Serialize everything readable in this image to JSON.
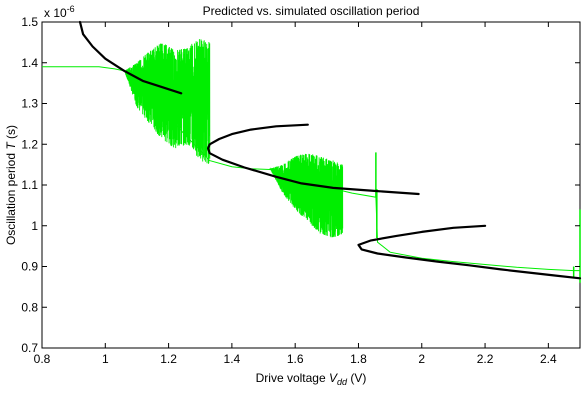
{
  "chart_data": {
    "type": "line",
    "title": "Predicted vs. simulated oscillation period",
    "xlabel": "Drive voltage V_dd (V)",
    "xlabel_parts": {
      "pre": "Drive voltage ",
      "var": "V",
      "sub": "dd",
      "post": " (V)"
    },
    "ylabel": "Oscillation period T (s)",
    "ylabel_parts": {
      "pre": "Oscillation period ",
      "var": "T",
      "post": " (s)"
    },
    "y_exponent_label": "x 10",
    "y_exponent_power": "-6",
    "xlim": [
      0.8,
      2.5
    ],
    "ylim": [
      0.7,
      1.5
    ],
    "xticks": [
      0.8,
      1,
      1.2,
      1.4,
      1.6,
      1.8,
      2,
      2.2,
      2.4
    ],
    "xtick_labels": [
      "0.8",
      "1",
      "1.2",
      "1.4",
      "1.6",
      "1.8",
      "2",
      "2.2",
      "2.4"
    ],
    "yticks": [
      0.7,
      0.8,
      0.9,
      1.0,
      1.1,
      1.2,
      1.3,
      1.4,
      1.5
    ],
    "ytick_labels": [
      "0.7",
      "0.8",
      "0.9",
      "1",
      "1.1",
      "1.2",
      "1.3",
      "1.4",
      "1.5"
    ],
    "grid": false,
    "colors": {
      "predicted": "#000000",
      "simulated": "#00ee00",
      "axes": "#000000"
    },
    "series": [
      {
        "kind": "predicted",
        "segments": [
          [
            [
              0.92,
              1.5
            ],
            [
              0.93,
              1.47
            ],
            [
              0.96,
              1.44
            ],
            [
              1.0,
              1.41
            ],
            [
              1.06,
              1.38
            ],
            [
              1.12,
              1.355
            ],
            [
              1.18,
              1.34
            ],
            [
              1.24,
              1.325
            ]
          ],
          [
            [
              1.64,
              1.248
            ],
            [
              1.54,
              1.244
            ],
            [
              1.46,
              1.236
            ],
            [
              1.4,
              1.225
            ],
            [
              1.36,
              1.213
            ],
            [
              1.33,
              1.2
            ],
            [
              1.325,
              1.19
            ],
            [
              1.33,
              1.178
            ],
            [
              1.37,
              1.162
            ],
            [
              1.44,
              1.143
            ],
            [
              1.54,
              1.12
            ],
            [
              1.62,
              1.104
            ],
            [
              1.72,
              1.093
            ],
            [
              1.86,
              1.085
            ],
            [
              1.99,
              1.078
            ]
          ],
          [
            [
              2.2,
              1.0
            ],
            [
              2.1,
              0.995
            ],
            [
              2.0,
              0.985
            ],
            [
              1.92,
              0.975
            ],
            [
              1.84,
              0.964
            ],
            [
              1.8,
              0.953
            ],
            [
              1.81,
              0.942
            ],
            [
              1.86,
              0.932
            ],
            [
              1.95,
              0.922
            ],
            [
              2.05,
              0.912
            ],
            [
              2.15,
              0.903
            ],
            [
              2.25,
              0.893
            ],
            [
              2.35,
              0.884
            ],
            [
              2.42,
              0.878
            ],
            [
              2.5,
              0.871
            ]
          ]
        ]
      },
      {
        "kind": "simulated",
        "baseline": [
          [
            0.8,
            1.39
          ],
          [
            0.92,
            1.39
          ],
          [
            0.98,
            1.39
          ],
          [
            1.03,
            1.385
          ],
          [
            1.06,
            1.38
          ],
          [
            1.33,
            1.16
          ],
          [
            1.4,
            1.145
          ],
          [
            1.46,
            1.14
          ],
          [
            1.52,
            1.138
          ],
          [
            1.56,
            1.135
          ],
          [
            1.62,
            1.115
          ],
          [
            1.7,
            1.095
          ],
          [
            1.78,
            1.08
          ],
          [
            1.855,
            1.07
          ],
          [
            1.86,
            0.96
          ],
          [
            1.9,
            0.935
          ],
          [
            2.0,
            0.92
          ],
          [
            2.1,
            0.912
          ],
          [
            2.2,
            0.905
          ],
          [
            2.3,
            0.898
          ],
          [
            2.4,
            0.893
          ],
          [
            2.48,
            0.89
          ],
          [
            2.5,
            0.89
          ]
        ],
        "bands": [
          {
            "x": [
              1.06,
              1.33
            ],
            "upper": [
              [
                1.06,
                1.38
              ],
              [
                1.1,
                1.4
              ],
              [
                1.14,
                1.43
              ],
              [
                1.18,
                1.45
              ],
              [
                1.22,
                1.43
              ],
              [
                1.26,
                1.44
              ],
              [
                1.3,
                1.46
              ],
              [
                1.33,
                1.45
              ]
            ],
            "lower": [
              [
                1.06,
                1.38
              ],
              [
                1.1,
                1.29
              ],
              [
                1.14,
                1.25
              ],
              [
                1.18,
                1.21
              ],
              [
                1.22,
                1.19
              ],
              [
                1.26,
                1.2
              ],
              [
                1.3,
                1.16
              ],
              [
                1.33,
                1.15
              ]
            ]
          },
          {
            "x": [
              1.52,
              1.75
            ],
            "upper": [
              [
                1.52,
                1.14
              ],
              [
                1.56,
                1.15
              ],
              [
                1.6,
                1.17
              ],
              [
                1.64,
                1.18
              ],
              [
                1.68,
                1.17
              ],
              [
                1.72,
                1.16
              ],
              [
                1.75,
                1.15
              ]
            ],
            "lower": [
              [
                1.52,
                1.14
              ],
              [
                1.56,
                1.08
              ],
              [
                1.6,
                1.04
              ],
              [
                1.64,
                1.01
              ],
              [
                1.68,
                0.98
              ],
              [
                1.72,
                0.97
              ],
              [
                1.75,
                0.98
              ]
            ]
          }
        ],
        "spikes": [
          {
            "x": 1.855,
            "y": [
              1.07,
              1.18
            ]
          },
          {
            "x": 1.858,
            "y": [
              0.97,
              1.09
            ]
          },
          {
            "x": 2.48,
            "y": [
              0.875,
              0.9
            ]
          },
          {
            "x": 2.5,
            "y": [
              0.86,
              1.04
            ]
          }
        ]
      }
    ]
  }
}
